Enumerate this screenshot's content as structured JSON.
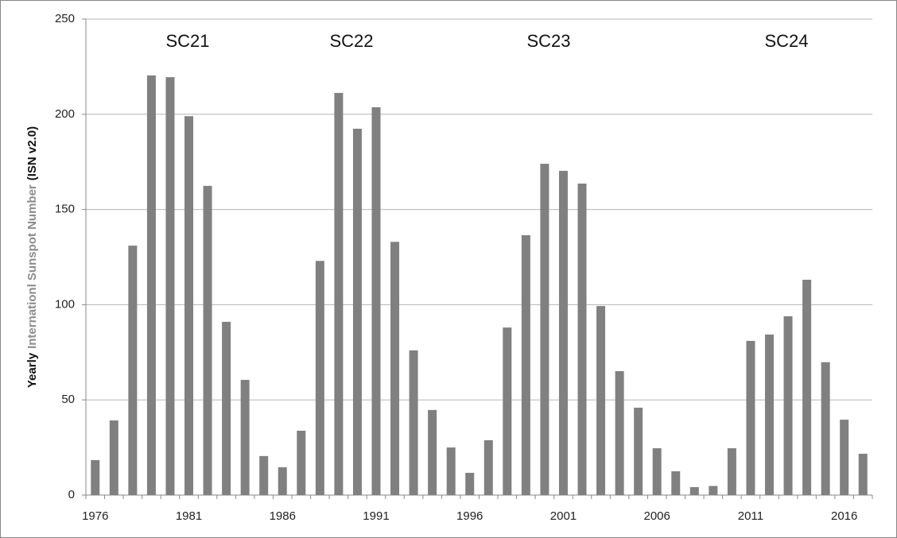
{
  "chart_data": {
    "type": "bar",
    "ylabel": [
      "Yearly",
      "Internationl Sunspot Number",
      "(ISN v2.0)"
    ],
    "annotations": [
      "SC21",
      "SC22",
      "SC23",
      "SC24"
    ],
    "categories": [
      "1976",
      null,
      null,
      null,
      null,
      "1981",
      null,
      null,
      null,
      null,
      "1986",
      null,
      null,
      null,
      null,
      "1991",
      null,
      null,
      null,
      null,
      "1996",
      null,
      null,
      null,
      null,
      "2001",
      null,
      null,
      null,
      null,
      "2006",
      null,
      null,
      null,
      null,
      "2011",
      null,
      null,
      null,
      null,
      "2016",
      null
    ],
    "values": [
      18.4,
      39.2,
      131,
      220.4,
      219.5,
      199,
      162.4,
      91,
      60.5,
      20.5,
      14.6,
      33.8,
      123,
      211.2,
      192.4,
      203.7,
      133,
      76,
      44.7,
      25,
      11.7,
      28.8,
      88,
      136.5,
      174,
      170.3,
      163.6,
      99.3,
      65.1,
      45.9,
      24.6,
      12.5,
      4.2,
      4.8,
      24.6,
      81,
      84.3,
      93.9,
      113.1,
      69.8,
      39.6,
      21.7
    ],
    "color": "#808080",
    "ylim": [
      0,
      250
    ],
    "yticks": [
      0,
      50,
      100,
      150,
      200,
      250
    ],
    "grid": true
  }
}
